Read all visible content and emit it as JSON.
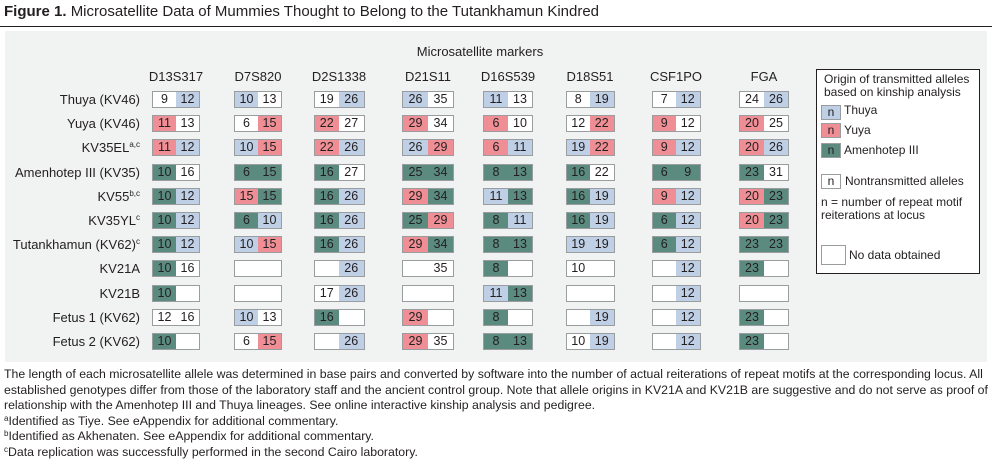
{
  "figure": {
    "label": "Figure 1.",
    "title": "Microsatellite Data of Mummies Thought to Belong to the Tutankhamun Kindred"
  },
  "markers_caption": "Microsatellite markers",
  "markers": [
    "D13S317",
    "D7S820",
    "D2S1338",
    "D21S11",
    "D16S539",
    "D18S51",
    "CSF1PO",
    "FGA"
  ],
  "colors": {
    "thuya": "#bfcfe6",
    "yuya": "#ef8e95",
    "amenhotep_iii": "#5b8b7f",
    "nontransmitted": "#ffffff",
    "panel_background": "#f1f2f2"
  },
  "rows": [
    {
      "name": "Thuya (KV46)",
      "sup": "",
      "cells": [
        [
          [
            "9",
            "W"
          ],
          [
            "12",
            "B"
          ]
        ],
        [
          [
            "10",
            "B"
          ],
          [
            "13",
            "W"
          ]
        ],
        [
          [
            "19",
            "W"
          ],
          [
            "26",
            "B"
          ]
        ],
        [
          [
            "26",
            "B"
          ],
          [
            "35",
            "W"
          ]
        ],
        [
          [
            "11",
            "B"
          ],
          [
            "13",
            "W"
          ]
        ],
        [
          [
            "8",
            "W"
          ],
          [
            "19",
            "B"
          ]
        ],
        [
          [
            "7",
            "W"
          ],
          [
            "12",
            "B"
          ]
        ],
        [
          [
            "24",
            "W"
          ],
          [
            "26",
            "B"
          ]
        ]
      ]
    },
    {
      "name": "Yuya (KV46)",
      "sup": "",
      "cells": [
        [
          [
            "11",
            "P"
          ],
          [
            "13",
            "W"
          ]
        ],
        [
          [
            "6",
            "W"
          ],
          [
            "15",
            "P"
          ]
        ],
        [
          [
            "22",
            "P"
          ],
          [
            "27",
            "W"
          ]
        ],
        [
          [
            "29",
            "P"
          ],
          [
            "34",
            "W"
          ]
        ],
        [
          [
            "6",
            "P"
          ],
          [
            "10",
            "W"
          ]
        ],
        [
          [
            "12",
            "W"
          ],
          [
            "22",
            "P"
          ]
        ],
        [
          [
            "9",
            "P"
          ],
          [
            "12",
            "W"
          ]
        ],
        [
          [
            "20",
            "P"
          ],
          [
            "25",
            "W"
          ]
        ]
      ]
    },
    {
      "name": "KV35EL",
      "sup": "a,c",
      "cells": [
        [
          [
            "11",
            "P"
          ],
          [
            "12",
            "B"
          ]
        ],
        [
          [
            "10",
            "B"
          ],
          [
            "15",
            "P"
          ]
        ],
        [
          [
            "22",
            "P"
          ],
          [
            "26",
            "B"
          ]
        ],
        [
          [
            "26",
            "B"
          ],
          [
            "29",
            "P"
          ]
        ],
        [
          [
            "6",
            "P"
          ],
          [
            "11",
            "B"
          ]
        ],
        [
          [
            "19",
            "B"
          ],
          [
            "22",
            "P"
          ]
        ],
        [
          [
            "9",
            "P"
          ],
          [
            "12",
            "B"
          ]
        ],
        [
          [
            "20",
            "P"
          ],
          [
            "26",
            "B"
          ]
        ]
      ]
    },
    {
      "name": "Amenhotep III (KV35)",
      "sup": "",
      "cells": [
        [
          [
            "10",
            "G"
          ],
          [
            "16",
            "W"
          ]
        ],
        [
          [
            "6",
            "G"
          ],
          [
            "15",
            "G"
          ]
        ],
        [
          [
            "16",
            "G"
          ],
          [
            "27",
            "W"
          ]
        ],
        [
          [
            "25",
            "G"
          ],
          [
            "34",
            "G"
          ]
        ],
        [
          [
            "8",
            "G"
          ],
          [
            "13",
            "G"
          ]
        ],
        [
          [
            "16",
            "G"
          ],
          [
            "22",
            "W"
          ]
        ],
        [
          [
            "6",
            "G"
          ],
          [
            "9",
            "G"
          ]
        ],
        [
          [
            "23",
            "G"
          ],
          [
            "31",
            "W"
          ]
        ]
      ]
    },
    {
      "name": "KV55",
      "sup": "b,c",
      "cells": [
        [
          [
            "10",
            "G"
          ],
          [
            "12",
            "B"
          ]
        ],
        [
          [
            "15",
            "P"
          ],
          [
            "15",
            "G"
          ]
        ],
        [
          [
            "16",
            "G"
          ],
          [
            "26",
            "B"
          ]
        ],
        [
          [
            "29",
            "P"
          ],
          [
            "34",
            "G"
          ]
        ],
        [
          [
            "11",
            "B"
          ],
          [
            "13",
            "G"
          ]
        ],
        [
          [
            "16",
            "G"
          ],
          [
            "19",
            "B"
          ]
        ],
        [
          [
            "9",
            "P"
          ],
          [
            "12",
            "B"
          ]
        ],
        [
          [
            "20",
            "P"
          ],
          [
            "23",
            "G"
          ]
        ]
      ]
    },
    {
      "name": "KV35YL",
      "sup": "c",
      "cells": [
        [
          [
            "10",
            "G"
          ],
          [
            "12",
            "B"
          ]
        ],
        [
          [
            "6",
            "G"
          ],
          [
            "10",
            "B"
          ]
        ],
        [
          [
            "16",
            "G"
          ],
          [
            "26",
            "B"
          ]
        ],
        [
          [
            "25",
            "G"
          ],
          [
            "29",
            "P"
          ]
        ],
        [
          [
            "8",
            "G"
          ],
          [
            "11",
            "B"
          ]
        ],
        [
          [
            "16",
            "G"
          ],
          [
            "19",
            "B"
          ]
        ],
        [
          [
            "6",
            "G"
          ],
          [
            "12",
            "B"
          ]
        ],
        [
          [
            "20",
            "P"
          ],
          [
            "23",
            "G"
          ]
        ]
      ]
    },
    {
      "name": "Tutankhamun (KV62)",
      "sup": "c",
      "cells": [
        [
          [
            "10",
            "G"
          ],
          [
            "12",
            "B"
          ]
        ],
        [
          [
            "10",
            "B"
          ],
          [
            "15",
            "P"
          ]
        ],
        [
          [
            "16",
            "G"
          ],
          [
            "26",
            "B"
          ]
        ],
        [
          [
            "29",
            "P"
          ],
          [
            "34",
            "G"
          ]
        ],
        [
          [
            "8",
            "G"
          ],
          [
            "13",
            "G"
          ]
        ],
        [
          [
            "19",
            "B"
          ],
          [
            "19",
            "B"
          ]
        ],
        [
          [
            "6",
            "G"
          ],
          [
            "12",
            "B"
          ]
        ],
        [
          [
            "23",
            "G"
          ],
          [
            "23",
            "G"
          ]
        ]
      ]
    },
    {
      "name": "KV21A",
      "sup": "",
      "cells": [
        [
          [
            "10",
            "G"
          ],
          [
            "16",
            "W"
          ]
        ],
        [
          [
            "",
            "W"
          ],
          [
            "",
            "W"
          ]
        ],
        [
          [
            "",
            "W"
          ],
          [
            "26",
            "B"
          ]
        ],
        [
          [
            "",
            "W"
          ],
          [
            "35",
            "W"
          ]
        ],
        [
          [
            "8",
            "G"
          ],
          [
            "",
            "W"
          ]
        ],
        [
          [
            "10",
            "W"
          ],
          [
            "",
            "W"
          ]
        ],
        [
          [
            "",
            "W"
          ],
          [
            "12",
            "B"
          ]
        ],
        [
          [
            "23",
            "G"
          ],
          [
            "",
            "W"
          ]
        ]
      ]
    },
    {
      "name": "KV21B",
      "sup": "",
      "cells": [
        [
          [
            "10",
            "G"
          ],
          [
            "",
            "W"
          ]
        ],
        [
          [
            "",
            "W"
          ],
          [
            "",
            "W"
          ]
        ],
        [
          [
            "17",
            "W"
          ],
          [
            "26",
            "B"
          ]
        ],
        [
          [
            "",
            "W"
          ],
          [
            "",
            "W"
          ]
        ],
        [
          [
            "11",
            "B"
          ],
          [
            "13",
            "G"
          ]
        ],
        [
          [
            "",
            "W"
          ],
          [
            "",
            "W"
          ]
        ],
        [
          [
            "",
            "W"
          ],
          [
            "12",
            "B"
          ]
        ],
        [
          [
            "",
            "W"
          ],
          [
            "",
            "W"
          ]
        ]
      ]
    },
    {
      "name": "Fetus 1 (KV62)",
      "sup": "",
      "cells": [
        [
          [
            "12",
            "W"
          ],
          [
            "16",
            "W"
          ]
        ],
        [
          [
            "10",
            "B"
          ],
          [
            "13",
            "W"
          ]
        ],
        [
          [
            "16",
            "G"
          ],
          [
            "",
            "W"
          ]
        ],
        [
          [
            "29",
            "P"
          ],
          [
            "",
            "W"
          ]
        ],
        [
          [
            "8",
            "G"
          ],
          [
            "",
            "W"
          ]
        ],
        [
          [
            "",
            "W"
          ],
          [
            "19",
            "B"
          ]
        ],
        [
          [
            "",
            "W"
          ],
          [
            "12",
            "B"
          ]
        ],
        [
          [
            "23",
            "G"
          ],
          [
            "",
            "W"
          ]
        ]
      ]
    },
    {
      "name": "Fetus 2 (KV62)",
      "sup": "",
      "cells": [
        [
          [
            "10",
            "G"
          ],
          [
            "",
            "W"
          ]
        ],
        [
          [
            "6",
            "W"
          ],
          [
            "15",
            "P"
          ]
        ],
        [
          [
            "",
            "W"
          ],
          [
            "26",
            "B"
          ]
        ],
        [
          [
            "29",
            "P"
          ],
          [
            "35",
            "W"
          ]
        ],
        [
          [
            "8",
            "G"
          ],
          [
            "13",
            "G"
          ]
        ],
        [
          [
            "10",
            "W"
          ],
          [
            "19",
            "B"
          ]
        ],
        [
          [
            "",
            "W"
          ],
          [
            "12",
            "B"
          ]
        ],
        [
          [
            "23",
            "G"
          ],
          [
            "",
            "W"
          ]
        ]
      ]
    }
  ],
  "legend": {
    "title": "Origin of transmitted alleles based on kinship analysis",
    "swatch_letter": "n",
    "items": [
      {
        "label": "Thuya",
        "color": "B"
      },
      {
        "label": "Yuya",
        "color": "P"
      },
      {
        "label": "Amenhotep III",
        "color": "G"
      }
    ],
    "nontransmitted": "Nontransmitted alleles",
    "n_definition": "n = number of repeat motif reiterations at locus",
    "no_data": "No data obtained"
  },
  "notes": {
    "body": "The length of each microsatellite allele was determined in base pairs and converted by software into the number of actual reiterations of repeat motifs at the corresponding locus. All established genotypes differ from those of the laboratory staff and the ancient control group. Note that allele origins in KV21A and KV21B are suggestive and do not serve as proof of relationship with the Amenhotep III and Thuya lineages. See online interactive kinship analysis and pedigree.",
    "footnotes": [
      {
        "mark": "a",
        "text": "Identified as Tiye. See eAppendix for additional commentary."
      },
      {
        "mark": "b",
        "text": "Identified as Akhenaten. See eAppendix for additional commentary."
      },
      {
        "mark": "c",
        "text": "Data replication was successfully performed in the second Cairo laboratory."
      }
    ]
  }
}
